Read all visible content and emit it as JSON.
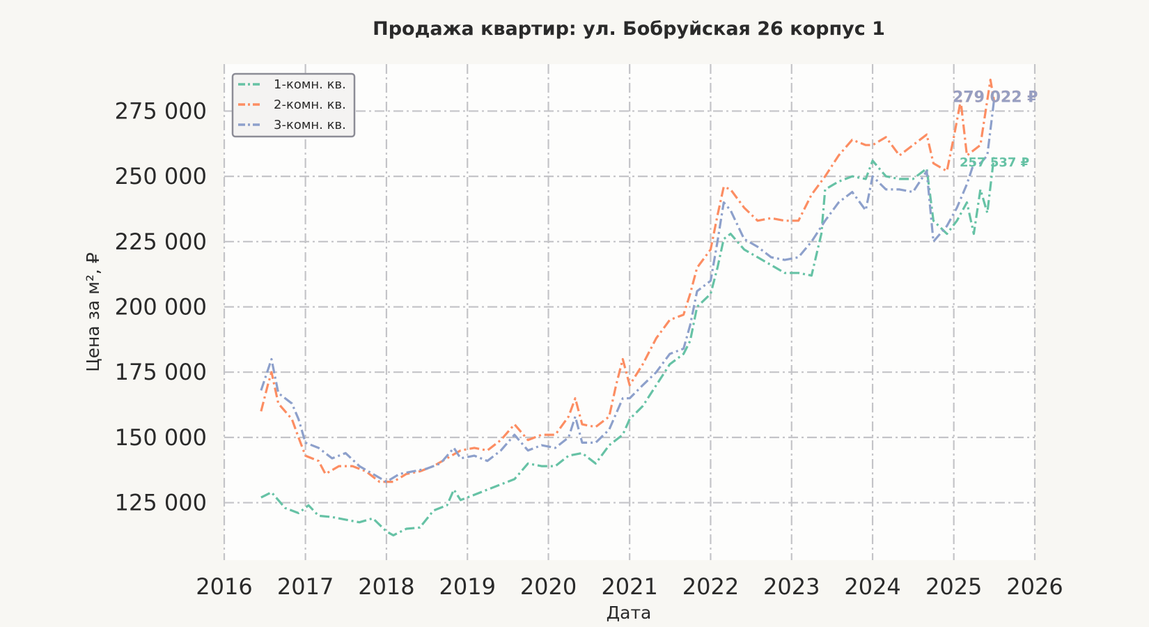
{
  "chart_data": {
    "type": "line",
    "title": "Продажа квартир: ул. Бобруйская 26 корпус 1",
    "xlabel": "Дата",
    "ylabel": "Цена за м², ₽",
    "xlim": [
      "2016-01-01",
      "2026-01-01"
    ],
    "ylim": [
      103000,
      293000
    ],
    "x_ticks": [
      "2016",
      "2017",
      "2018",
      "2019",
      "2020",
      "2021",
      "2022",
      "2023",
      "2024",
      "2025",
      "2026"
    ],
    "y_ticks": [
      125000,
      150000,
      175000,
      200000,
      225000,
      250000,
      275000
    ],
    "y_tick_labels": [
      "125 000",
      "150 000",
      "175 000",
      "200 000",
      "225 000",
      "250 000",
      "275 000"
    ],
    "grid": true,
    "legend_position": "top-left",
    "series": [
      {
        "name": "1-комн. кв.",
        "color": "#66c2a5",
        "dash": "dashdot",
        "end_label": "257 537 ₽",
        "points": [
          [
            "2016-06-15",
            127000
          ],
          [
            "2016-08-01",
            129000
          ],
          [
            "2016-10-01",
            123000
          ],
          [
            "2016-12-01",
            121000
          ],
          [
            "2017-01-15",
            124000
          ],
          [
            "2017-03-01",
            120000
          ],
          [
            "2017-05-01",
            119500
          ],
          [
            "2017-07-01",
            118500
          ],
          [
            "2017-09-01",
            117500
          ],
          [
            "2017-11-01",
            119000
          ],
          [
            "2018-01-01",
            114000
          ],
          [
            "2018-02-01",
            112500
          ],
          [
            "2018-04-01",
            115000
          ],
          [
            "2018-06-01",
            115500
          ],
          [
            "2018-08-01",
            122000
          ],
          [
            "2018-10-01",
            124000
          ],
          [
            "2018-11-01",
            130000
          ],
          [
            "2018-12-01",
            126000
          ],
          [
            "2019-02-01",
            128000
          ],
          [
            "2019-04-01",
            130000
          ],
          [
            "2019-06-01",
            132000
          ],
          [
            "2019-08-01",
            134000
          ],
          [
            "2019-10-01",
            140000
          ],
          [
            "2019-12-01",
            139000
          ],
          [
            "2020-02-01",
            139000
          ],
          [
            "2020-04-01",
            143000
          ],
          [
            "2020-06-01",
            144000
          ],
          [
            "2020-08-01",
            140000
          ],
          [
            "2020-10-01",
            147000
          ],
          [
            "2020-12-01",
            151000
          ],
          [
            "2021-01-01",
            157000
          ],
          [
            "2021-03-01",
            162000
          ],
          [
            "2021-05-01",
            170000
          ],
          [
            "2021-07-01",
            178000
          ],
          [
            "2021-09-01",
            182000
          ],
          [
            "2021-10-01",
            187000
          ],
          [
            "2021-11-01",
            200000
          ],
          [
            "2022-01-01",
            205000
          ],
          [
            "2022-02-01",
            215000
          ],
          [
            "2022-03-01",
            226000
          ],
          [
            "2022-04-01",
            228000
          ],
          [
            "2022-06-01",
            222000
          ],
          [
            "2022-08-01",
            219000
          ],
          [
            "2022-10-01",
            216000
          ],
          [
            "2022-12-01",
            213000
          ],
          [
            "2023-02-01",
            213000
          ],
          [
            "2023-04-01",
            212000
          ],
          [
            "2023-05-15",
            228000
          ],
          [
            "2023-06-01",
            245000
          ],
          [
            "2023-08-01",
            248000
          ],
          [
            "2023-10-01",
            250000
          ],
          [
            "2023-12-01",
            249000
          ],
          [
            "2024-01-01",
            256000
          ],
          [
            "2024-03-01",
            250000
          ],
          [
            "2024-05-01",
            249000
          ],
          [
            "2024-07-01",
            249000
          ],
          [
            "2024-09-01",
            253000
          ],
          [
            "2024-10-01",
            233000
          ],
          [
            "2024-12-01",
            228000
          ],
          [
            "2025-01-15",
            233000
          ],
          [
            "2025-03-01",
            240000
          ],
          [
            "2025-04-01",
            228000
          ],
          [
            "2025-05-01",
            245000
          ],
          [
            "2025-06-01",
            236000
          ],
          [
            "2025-07-01",
            257537
          ]
        ]
      },
      {
        "name": "2-комн. кв.",
        "color": "#fc8d62",
        "dash": "dashdot",
        "end_label": "279 022 ₽",
        "points": [
          [
            "2016-06-15",
            160000
          ],
          [
            "2016-07-15",
            170000
          ],
          [
            "2016-08-01",
            175000
          ],
          [
            "2016-09-01",
            163000
          ],
          [
            "2016-11-01",
            157000
          ],
          [
            "2016-12-01",
            150000
          ],
          [
            "2017-01-01",
            143000
          ],
          [
            "2017-03-01",
            141000
          ],
          [
            "2017-04-01",
            136000
          ],
          [
            "2017-06-01",
            139000
          ],
          [
            "2017-08-01",
            139000
          ],
          [
            "2017-10-01",
            137000
          ],
          [
            "2017-12-01",
            133000
          ],
          [
            "2018-02-01",
            133000
          ],
          [
            "2018-04-01",
            136000
          ],
          [
            "2018-06-01",
            137000
          ],
          [
            "2018-08-01",
            139000
          ],
          [
            "2018-10-01",
            142000
          ],
          [
            "2018-12-01",
            145000
          ],
          [
            "2019-02-01",
            146000
          ],
          [
            "2019-04-01",
            145000
          ],
          [
            "2019-06-01",
            149000
          ],
          [
            "2019-08-01",
            155000
          ],
          [
            "2019-10-01",
            149000
          ],
          [
            "2019-12-01",
            151000
          ],
          [
            "2020-02-01",
            151000
          ],
          [
            "2020-04-01",
            158000
          ],
          [
            "2020-05-01",
            165000
          ],
          [
            "2020-06-01",
            155000
          ],
          [
            "2020-08-01",
            154000
          ],
          [
            "2020-10-01",
            158000
          ],
          [
            "2020-11-01",
            170000
          ],
          [
            "2020-12-01",
            180000
          ],
          [
            "2021-01-01",
            170000
          ],
          [
            "2021-03-01",
            178000
          ],
          [
            "2021-05-01",
            188000
          ],
          [
            "2021-07-01",
            195000
          ],
          [
            "2021-09-01",
            197000
          ],
          [
            "2021-10-01",
            205000
          ],
          [
            "2021-11-01",
            215000
          ],
          [
            "2022-01-01",
            222000
          ],
          [
            "2022-02-01",
            235000
          ],
          [
            "2022-03-01",
            246000
          ],
          [
            "2022-04-01",
            245000
          ],
          [
            "2022-06-01",
            238000
          ],
          [
            "2022-08-01",
            233000
          ],
          [
            "2022-10-01",
            234000
          ],
          [
            "2022-12-01",
            233000
          ],
          [
            "2023-02-01",
            233000
          ],
          [
            "2023-04-01",
            243000
          ],
          [
            "2023-06-01",
            250000
          ],
          [
            "2023-08-01",
            258000
          ],
          [
            "2023-10-01",
            264000
          ],
          [
            "2023-12-01",
            262000
          ],
          [
            "2024-01-01",
            262000
          ],
          [
            "2024-03-01",
            265000
          ],
          [
            "2024-05-01",
            258000
          ],
          [
            "2024-07-01",
            262000
          ],
          [
            "2024-09-01",
            266000
          ],
          [
            "2024-10-01",
            255000
          ],
          [
            "2024-12-01",
            252000
          ],
          [
            "2025-01-01",
            265000
          ],
          [
            "2025-02-01",
            279000
          ],
          [
            "2025-03-01",
            258000
          ],
          [
            "2025-05-01",
            262000
          ],
          [
            "2025-06-15",
            287000
          ],
          [
            "2025-07-01",
            279022
          ]
        ]
      },
      {
        "name": "3-комн. кв.",
        "color": "#8da0cb",
        "dash": "dashdot",
        "end_label": "279 022 ₽",
        "points": [
          [
            "2016-06-15",
            168000
          ],
          [
            "2016-08-01",
            180000
          ],
          [
            "2016-09-01",
            167000
          ],
          [
            "2016-11-01",
            163000
          ],
          [
            "2016-12-01",
            157000
          ],
          [
            "2017-01-01",
            148000
          ],
          [
            "2017-03-01",
            146000
          ],
          [
            "2017-05-01",
            142000
          ],
          [
            "2017-07-01",
            144000
          ],
          [
            "2017-09-01",
            139000
          ],
          [
            "2017-11-01",
            136000
          ],
          [
            "2018-01-01",
            133000
          ],
          [
            "2018-03-01",
            136000
          ],
          [
            "2018-05-01",
            137000
          ],
          [
            "2018-07-01",
            138000
          ],
          [
            "2018-09-01",
            140000
          ],
          [
            "2018-11-01",
            146000
          ],
          [
            "2018-12-01",
            142000
          ],
          [
            "2019-02-01",
            143000
          ],
          [
            "2019-04-01",
            141000
          ],
          [
            "2019-06-01",
            145000
          ],
          [
            "2019-08-01",
            151000
          ],
          [
            "2019-10-01",
            145000
          ],
          [
            "2019-12-01",
            147000
          ],
          [
            "2020-02-01",
            146000
          ],
          [
            "2020-04-01",
            150000
          ],
          [
            "2020-05-01",
            158000
          ],
          [
            "2020-06-01",
            148000
          ],
          [
            "2020-08-01",
            148000
          ],
          [
            "2020-10-01",
            153000
          ],
          [
            "2020-12-01",
            165000
          ],
          [
            "2021-01-01",
            165000
          ],
          [
            "2021-03-01",
            170000
          ],
          [
            "2021-05-01",
            175000
          ],
          [
            "2021-07-01",
            182000
          ],
          [
            "2021-09-01",
            184000
          ],
          [
            "2021-10-01",
            193000
          ],
          [
            "2021-11-01",
            206000
          ],
          [
            "2022-01-01",
            210000
          ],
          [
            "2022-02-01",
            225000
          ],
          [
            "2022-03-01",
            240000
          ],
          [
            "2022-04-01",
            237000
          ],
          [
            "2022-06-01",
            226000
          ],
          [
            "2022-08-01",
            223000
          ],
          [
            "2022-10-01",
            219000
          ],
          [
            "2022-12-01",
            218000
          ],
          [
            "2023-02-01",
            219000
          ],
          [
            "2023-04-01",
            225000
          ],
          [
            "2023-06-01",
            233000
          ],
          [
            "2023-08-01",
            240000
          ],
          [
            "2023-10-01",
            244000
          ],
          [
            "2023-12-01",
            237000
          ],
          [
            "2024-01-01",
            250000
          ],
          [
            "2024-03-01",
            245000
          ],
          [
            "2024-05-01",
            245000
          ],
          [
            "2024-07-01",
            244000
          ],
          [
            "2024-09-01",
            252000
          ],
          [
            "2024-10-01",
            225000
          ],
          [
            "2024-12-01",
            231000
          ],
          [
            "2025-01-15",
            238000
          ],
          [
            "2025-03-01",
            247000
          ],
          [
            "2025-04-01",
            255000
          ],
          [
            "2025-05-01",
            255000
          ],
          [
            "2025-06-01",
            258000
          ],
          [
            "2025-07-01",
            279022
          ]
        ]
      }
    ]
  }
}
